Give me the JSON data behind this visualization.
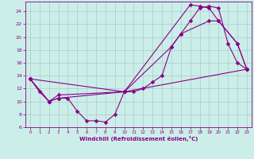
{
  "xlabel": "Windchill (Refroidissement éolien,°C)",
  "background_color": "#cceee8",
  "grid_color": "#aacccc",
  "line_color": "#880088",
  "xlim": [
    -0.5,
    23.5
  ],
  "ylim": [
    6,
    25.5
  ],
  "yticks": [
    6,
    8,
    10,
    12,
    14,
    16,
    18,
    20,
    22,
    24
  ],
  "xticks": [
    0,
    1,
    2,
    3,
    4,
    5,
    6,
    7,
    8,
    9,
    10,
    11,
    12,
    13,
    14,
    15,
    16,
    17,
    18,
    19,
    20,
    21,
    22,
    23
  ],
  "curve1_x": [
    0,
    1,
    2,
    3,
    4,
    5,
    6,
    7,
    8,
    9,
    10,
    11,
    12,
    13,
    14,
    15,
    16,
    17,
    18,
    19,
    20,
    21,
    22,
    23
  ],
  "curve1_y": [
    13.5,
    11.5,
    10.0,
    10.5,
    10.5,
    8.5,
    7.0,
    7.0,
    6.8,
    8.0,
    11.5,
    11.5,
    12.0,
    13.0,
    14.0,
    18.5,
    20.5,
    22.5,
    24.5,
    24.8,
    24.5,
    19.0,
    16.0,
    15.0
  ],
  "curve2_x": [
    0,
    2,
    3,
    10,
    17,
    18,
    19,
    20,
    22,
    23
  ],
  "curve2_y": [
    13.5,
    10.0,
    10.5,
    11.5,
    25.0,
    24.8,
    24.5,
    22.5,
    19.0,
    15.0
  ],
  "curve3_x": [
    0,
    2,
    3,
    10,
    15,
    16,
    19,
    20,
    22,
    23
  ],
  "curve3_y": [
    13.5,
    10.0,
    11.0,
    11.5,
    18.5,
    20.5,
    22.5,
    22.5,
    19.0,
    15.0
  ],
  "curve4_x": [
    0,
    10,
    23
  ],
  "curve4_y": [
    13.5,
    11.5,
    15.0
  ],
  "marker_size": 2.5,
  "line_width": 0.8
}
